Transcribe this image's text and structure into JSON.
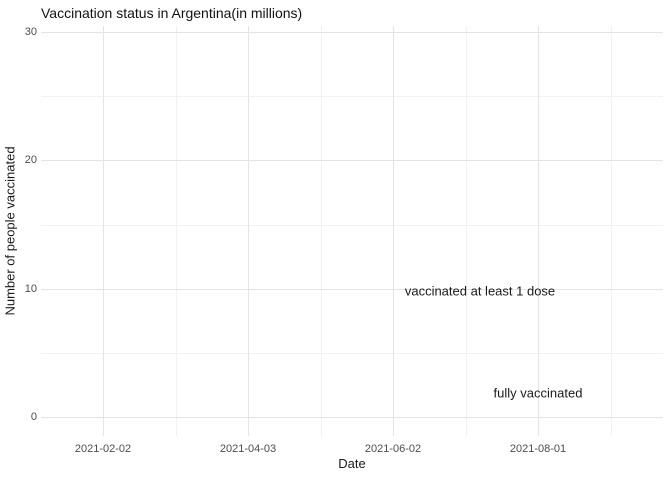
{
  "page": {
    "background": "#ffffff"
  },
  "colors": {
    "grid_major": "#e4e4e4",
    "grid_minor": "#f1f1f1",
    "tick_text": "#4d4d4d",
    "text": "#1a1a1a",
    "background": "#ffffff"
  },
  "chart_data": {
    "type": "line",
    "title": "Vaccination status in Argentina(in millions)",
    "xlabel": "Date",
    "ylabel": "Number of people vaccinated",
    "x_ticks": [
      {
        "date": "2021-02-02",
        "label": "2021-02-02"
      },
      {
        "date": "2021-04-03",
        "label": "2021-04-03"
      },
      {
        "date": "2021-06-02",
        "label": "2021-06-02"
      },
      {
        "date": "2021-08-01",
        "label": "2021-08-01"
      }
    ],
    "y_ticks": [
      {
        "value": 0,
        "label": "0"
      },
      {
        "value": 10,
        "label": "10"
      },
      {
        "value": 20,
        "label": "20"
      },
      {
        "value": 30,
        "label": "30"
      }
    ],
    "ylim": [
      0,
      30
    ],
    "grid": {
      "major": true,
      "minor": true
    },
    "legend": "none",
    "series_note": "no visible line or point geometry in the plot area; series are indicated only by in-plot text labels",
    "annotations": [
      {
        "text": "vaccinated at least 1 dose",
        "date": "2021-07-08",
        "value": 9.8
      },
      {
        "text": "fully vaccinated",
        "date": "2021-08-01",
        "value": 1.9
      }
    ]
  }
}
